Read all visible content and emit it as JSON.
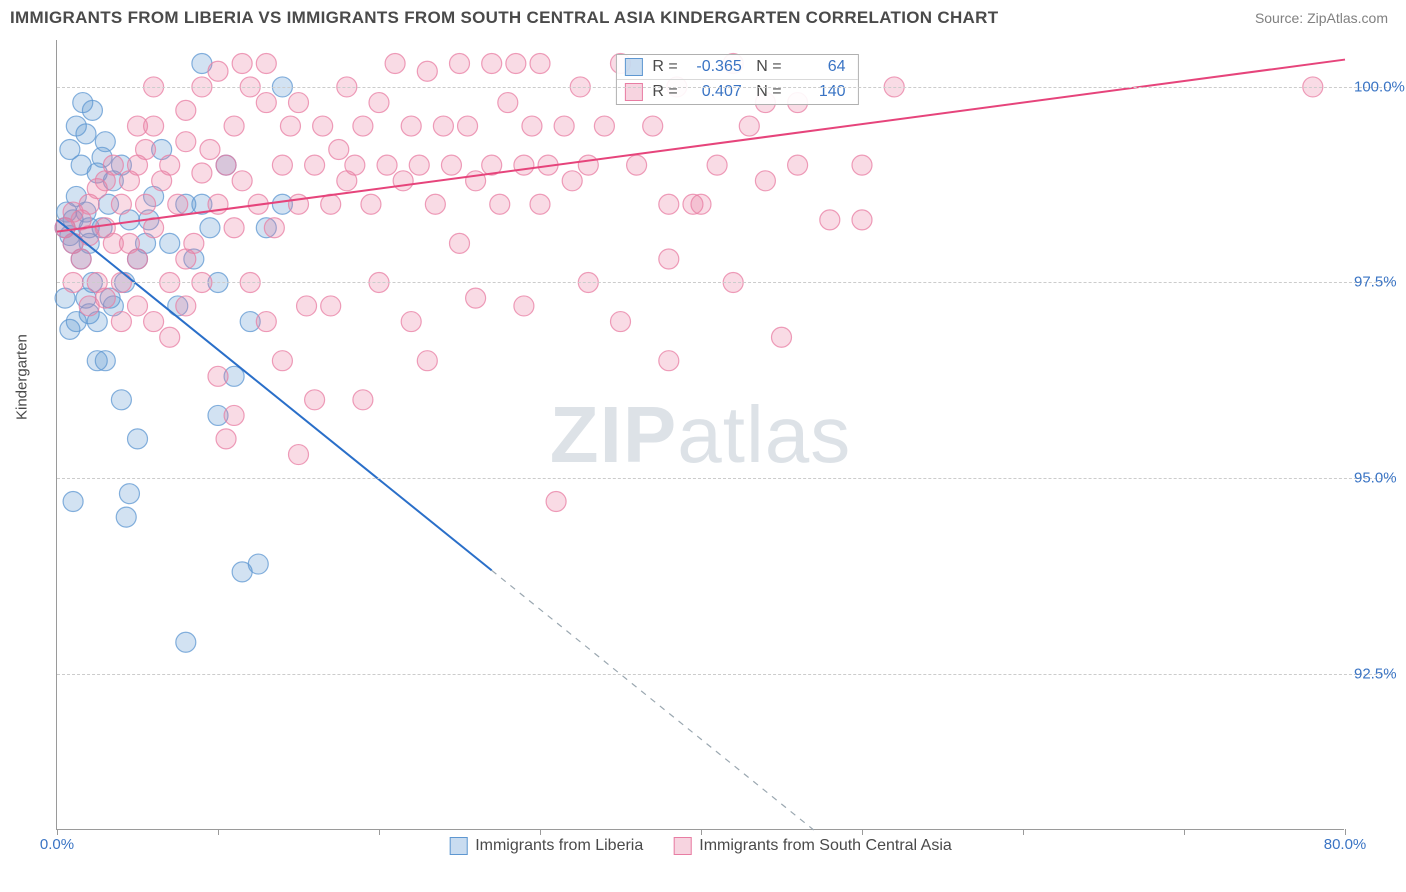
{
  "title": "IMMIGRANTS FROM LIBERIA VS IMMIGRANTS FROM SOUTH CENTRAL ASIA KINDERGARTEN CORRELATION CHART",
  "source": "Source: ZipAtlas.com",
  "y_axis_label": "Kindergarten",
  "watermark_bold": "ZIP",
  "watermark_rest": "atlas",
  "chart": {
    "type": "scatter",
    "xlim": [
      0,
      80
    ],
    "ylim": [
      90.5,
      100.6
    ],
    "x_ticks": [
      0,
      10,
      20,
      30,
      40,
      50,
      60,
      70,
      80
    ],
    "x_tick_labels": {
      "0": "0.0%",
      "80": "80.0%"
    },
    "y_ticks": [
      92.5,
      95.0,
      97.5,
      100.0
    ],
    "y_tick_labels": [
      "92.5%",
      "95.0%",
      "97.5%",
      "100.0%"
    ],
    "grid_color": "#cccccc",
    "background_color": "#ffffff",
    "axis_color": "#9a9a9a",
    "marker_radius": 10,
    "marker_fill_opacity": 0.28,
    "marker_stroke_opacity": 0.75,
    "line_width": 2,
    "series": [
      {
        "name": "Immigrants from Liberia",
        "color": "#5e97d1",
        "line_color": "#2a6fc9",
        "R": "-0.365",
        "N": "64",
        "regression": {
          "x1": 0,
          "y1": 98.3,
          "x2": 47,
          "y2": 90.5,
          "solid_until_x": 27
        },
        "points": [
          [
            0.5,
            98.2
          ],
          [
            0.6,
            98.4
          ],
          [
            0.8,
            98.1
          ],
          [
            0.8,
            99.2
          ],
          [
            1.0,
            98.0
          ],
          [
            1.0,
            98.3
          ],
          [
            1.2,
            99.5
          ],
          [
            1.2,
            98.6
          ],
          [
            1.5,
            99.0
          ],
          [
            1.5,
            97.8
          ],
          [
            1.6,
            99.8
          ],
          [
            1.8,
            98.4
          ],
          [
            1.8,
            99.4
          ],
          [
            2.0,
            98.0
          ],
          [
            2.0,
            98.2
          ],
          [
            2.2,
            99.7
          ],
          [
            2.2,
            97.5
          ],
          [
            2.5,
            98.9
          ],
          [
            2.5,
            97.0
          ],
          [
            2.8,
            99.1
          ],
          [
            2.8,
            98.2
          ],
          [
            3.0,
            96.5
          ],
          [
            3.0,
            99.3
          ],
          [
            3.2,
            98.5
          ],
          [
            3.3,
            97.3
          ],
          [
            3.5,
            98.8
          ],
          [
            3.5,
            97.2
          ],
          [
            4.0,
            99.0
          ],
          [
            4.0,
            96.0
          ],
          [
            4.2,
            97.5
          ],
          [
            4.3,
            94.5
          ],
          [
            4.5,
            98.3
          ],
          [
            4.5,
            94.8
          ],
          [
            5.0,
            97.8
          ],
          [
            5.0,
            95.5
          ],
          [
            5.5,
            98.0
          ],
          [
            5.7,
            98.3
          ],
          [
            6.0,
            98.6
          ],
          [
            6.5,
            99.2
          ],
          [
            9.0,
            100.3
          ],
          [
            7.0,
            98.0
          ],
          [
            7.5,
            97.2
          ],
          [
            8.0,
            98.5
          ],
          [
            8.0,
            92.9
          ],
          [
            8.5,
            97.8
          ],
          [
            9.0,
            98.5
          ],
          [
            9.5,
            98.2
          ],
          [
            10.0,
            97.5
          ],
          [
            10.0,
            95.8
          ],
          [
            10.5,
            99.0
          ],
          [
            11.0,
            96.3
          ],
          [
            11.5,
            93.8
          ],
          [
            12.0,
            97.0
          ],
          [
            12.5,
            93.9
          ],
          [
            13.0,
            98.2
          ],
          [
            14.0,
            98.5
          ],
          [
            14.0,
            100.0
          ],
          [
            1.0,
            94.7
          ],
          [
            0.8,
            96.9
          ],
          [
            0.5,
            97.3
          ],
          [
            1.2,
            97.0
          ],
          [
            1.8,
            97.3
          ],
          [
            2.0,
            97.1
          ],
          [
            2.5,
            96.5
          ]
        ]
      },
      {
        "name": "Immigrants from South Central Asia",
        "color": "#e87da3",
        "line_color": "#e6447b",
        "R": "0.407",
        "N": "140",
        "regression": {
          "x1": 0,
          "y1": 98.15,
          "x2": 80,
          "y2": 100.35,
          "solid_until_x": 80
        },
        "points": [
          [
            0.5,
            98.2
          ],
          [
            1.0,
            98.0
          ],
          [
            1.0,
            98.4
          ],
          [
            1.5,
            98.3
          ],
          [
            1.5,
            97.8
          ],
          [
            2.0,
            98.1
          ],
          [
            2.0,
            98.5
          ],
          [
            2.5,
            98.7
          ],
          [
            2.5,
            97.5
          ],
          [
            3.0,
            98.2
          ],
          [
            3.0,
            98.8
          ],
          [
            3.5,
            98.0
          ],
          [
            3.5,
            99.0
          ],
          [
            4.0,
            98.5
          ],
          [
            4.0,
            97.5
          ],
          [
            4.5,
            98.8
          ],
          [
            4.5,
            98.0
          ],
          [
            5.0,
            99.0
          ],
          [
            5.0,
            97.8
          ],
          [
            5.5,
            98.5
          ],
          [
            5.5,
            99.2
          ],
          [
            6.0,
            98.2
          ],
          [
            6.0,
            99.5
          ],
          [
            6.5,
            98.8
          ],
          [
            7.0,
            99.0
          ],
          [
            7.0,
            97.5
          ],
          [
            7.5,
            98.5
          ],
          [
            8.0,
            99.3
          ],
          [
            8.0,
            97.8
          ],
          [
            8.5,
            98.0
          ],
          [
            9.0,
            98.9
          ],
          [
            9.0,
            97.5
          ],
          [
            9.5,
            99.2
          ],
          [
            10.0,
            98.5
          ],
          [
            10.0,
            96.3
          ],
          [
            10.5,
            99.0
          ],
          [
            11.0,
            98.2
          ],
          [
            11.0,
            99.5
          ],
          [
            11.5,
            98.8
          ],
          [
            12.0,
            97.5
          ],
          [
            12.0,
            100.0
          ],
          [
            12.5,
            98.5
          ],
          [
            13.0,
            99.8
          ],
          [
            13.0,
            97.0
          ],
          [
            13.5,
            98.2
          ],
          [
            14.0,
            99.0
          ],
          [
            14.5,
            99.5
          ],
          [
            15.0,
            98.5
          ],
          [
            15.0,
            99.8
          ],
          [
            15.5,
            97.2
          ],
          [
            16.0,
            99.0
          ],
          [
            16.0,
            96.0
          ],
          [
            16.5,
            99.5
          ],
          [
            17.0,
            98.5
          ],
          [
            17.5,
            99.2
          ],
          [
            18.0,
            98.8
          ],
          [
            18.0,
            100.0
          ],
          [
            18.5,
            99.0
          ],
          [
            19.0,
            99.5
          ],
          [
            19.5,
            98.5
          ],
          [
            20.0,
            99.8
          ],
          [
            20.0,
            97.5
          ],
          [
            20.5,
            99.0
          ],
          [
            21.0,
            100.3
          ],
          [
            21.5,
            98.8
          ],
          [
            22.0,
            99.5
          ],
          [
            22.0,
            97.0
          ],
          [
            22.5,
            99.0
          ],
          [
            23.0,
            100.2
          ],
          [
            23.5,
            98.5
          ],
          [
            24.0,
            99.5
          ],
          [
            24.5,
            99.0
          ],
          [
            25.0,
            100.3
          ],
          [
            25.0,
            98.0
          ],
          [
            25.5,
            99.5
          ],
          [
            26.0,
            98.8
          ],
          [
            27.0,
            100.3
          ],
          [
            27.0,
            99.0
          ],
          [
            27.5,
            98.5
          ],
          [
            28.0,
            99.8
          ],
          [
            28.5,
            100.3
          ],
          [
            29.0,
            99.0
          ],
          [
            29.5,
            99.5
          ],
          [
            30.0,
            98.5
          ],
          [
            30.0,
            100.3
          ],
          [
            30.5,
            99.0
          ],
          [
            31.0,
            94.7
          ],
          [
            31.5,
            99.5
          ],
          [
            32.0,
            98.8
          ],
          [
            32.5,
            100.0
          ],
          [
            33.0,
            99.0
          ],
          [
            34.0,
            99.5
          ],
          [
            35.0,
            100.3
          ],
          [
            35.0,
            97.0
          ],
          [
            36.0,
            99.0
          ],
          [
            37.0,
            99.5
          ],
          [
            38.0,
            98.5
          ],
          [
            38.0,
            97.8
          ],
          [
            38.5,
            100.0
          ],
          [
            39.5,
            98.5
          ],
          [
            40.0,
            98.5
          ],
          [
            41.0,
            99.0
          ],
          [
            42.0,
            100.3
          ],
          [
            42.0,
            97.5
          ],
          [
            43.0,
            99.5
          ],
          [
            44.0,
            98.8
          ],
          [
            45.0,
            96.8
          ],
          [
            46.0,
            99.0
          ],
          [
            38.0,
            96.5
          ],
          [
            48.0,
            98.3
          ],
          [
            50.0,
            99.0
          ],
          [
            52.0,
            100.0
          ],
          [
            78.0,
            100.0
          ],
          [
            4.0,
            97.0
          ],
          [
            5.0,
            97.2
          ],
          [
            6.0,
            97.0
          ],
          [
            7.0,
            96.8
          ],
          [
            8.0,
            97.2
          ],
          [
            11.0,
            95.8
          ],
          [
            14.0,
            96.5
          ],
          [
            17.0,
            97.2
          ],
          [
            23.0,
            96.5
          ],
          [
            26.0,
            97.3
          ],
          [
            29.0,
            97.2
          ],
          [
            19.0,
            96.0
          ],
          [
            33.0,
            97.5
          ],
          [
            10.5,
            95.5
          ],
          [
            15.0,
            95.3
          ],
          [
            2.0,
            97.2
          ],
          [
            3.0,
            97.3
          ],
          [
            1.0,
            97.5
          ],
          [
            8.0,
            99.7
          ],
          [
            9.0,
            100.0
          ],
          [
            10.0,
            100.2
          ],
          [
            11.5,
            100.3
          ],
          [
            13.0,
            100.3
          ],
          [
            6.0,
            100.0
          ],
          [
            5.0,
            99.5
          ],
          [
            44.0,
            99.8
          ],
          [
            46.0,
            99.8
          ],
          [
            50.0,
            98.3
          ]
        ]
      }
    ]
  }
}
